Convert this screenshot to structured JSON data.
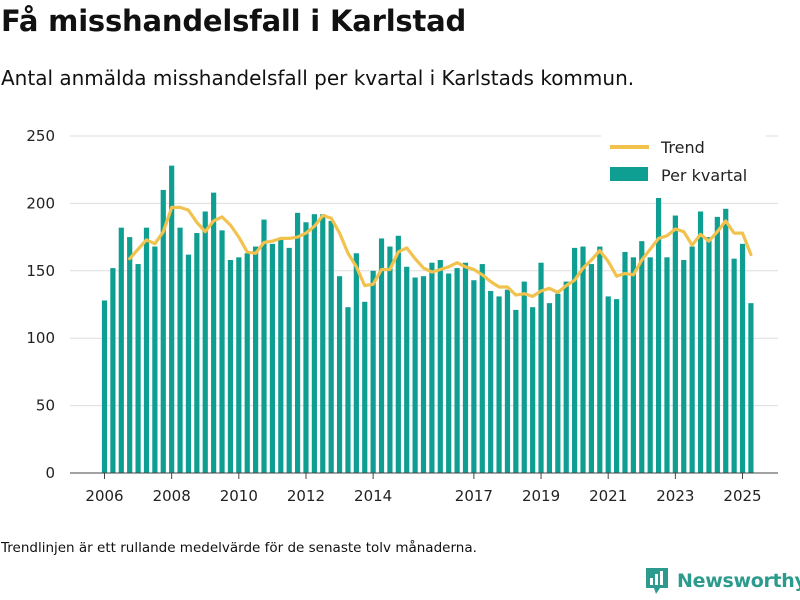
{
  "title": "Få misshandelsfall i Karlstad",
  "subtitle": "Antal anmälda misshandelsfall per kvartal i Karlstads kommun.",
  "footnote": "Trendlinjen är ett rullande medelvärde för de senaste tolv månaderna.",
  "brand": "Newsworthy",
  "colors": {
    "bars": "#0f9e92",
    "trend": "#f2c24e",
    "grid": "#dddddd",
    "brand": "#2d9a8e"
  },
  "chart_data": {
    "type": "bar",
    "title": "Få misshandelsfall i Karlstad",
    "subtitle": "Antal anmälda misshandelsfall per kvartal i Karlstads kommun.",
    "xlabel": "",
    "ylabel": "",
    "ylim": [
      0,
      250
    ],
    "yticks": [
      0,
      50,
      100,
      150,
      200,
      250
    ],
    "xticks": [
      "2006",
      "2008",
      "2010",
      "2012",
      "2014",
      "2017",
      "2019",
      "2021",
      "2023",
      "2025"
    ],
    "grid": true,
    "legend_position": "top-right",
    "x_start": "2006 Q1",
    "series": [
      {
        "name": "Per kvartal",
        "type": "bar",
        "values": [
          128,
          152,
          182,
          175,
          155,
          182,
          168,
          210,
          228,
          182,
          162,
          178,
          194,
          208,
          180,
          158,
          160,
          163,
          168,
          188,
          170,
          173,
          167,
          193,
          186,
          192,
          192,
          187,
          146,
          123,
          163,
          127,
          150,
          174,
          168,
          176,
          153,
          145,
          146,
          156,
          158,
          148,
          152,
          156,
          143,
          155,
          135,
          131,
          136,
          121,
          142,
          123,
          156,
          126,
          133,
          142,
          167,
          168,
          155,
          168,
          131,
          129,
          164,
          160,
          172,
          160,
          204,
          160,
          191,
          158,
          168,
          194,
          175,
          190,
          196,
          159,
          170,
          126
        ]
      },
      {
        "name": "Trend",
        "type": "line",
        "values": [
          null,
          null,
          null,
          159,
          166,
          173,
          170,
          179,
          197,
          197,
          195,
          186,
          179,
          187,
          190,
          184,
          175,
          164,
          163,
          171,
          172,
          174,
          174,
          175,
          178,
          183,
          191,
          189,
          178,
          163,
          153,
          139,
          140,
          151,
          151,
          164,
          167,
          159,
          152,
          149,
          151,
          153,
          156,
          153,
          151,
          147,
          142,
          138,
          138,
          132,
          133,
          131,
          135,
          137,
          134,
          139,
          143,
          152,
          158,
          165,
          157,
          146,
          148,
          147,
          158,
          166,
          174,
          176,
          181,
          179,
          169,
          177,
          172,
          179,
          187,
          178,
          178,
          162
        ]
      }
    ]
  }
}
